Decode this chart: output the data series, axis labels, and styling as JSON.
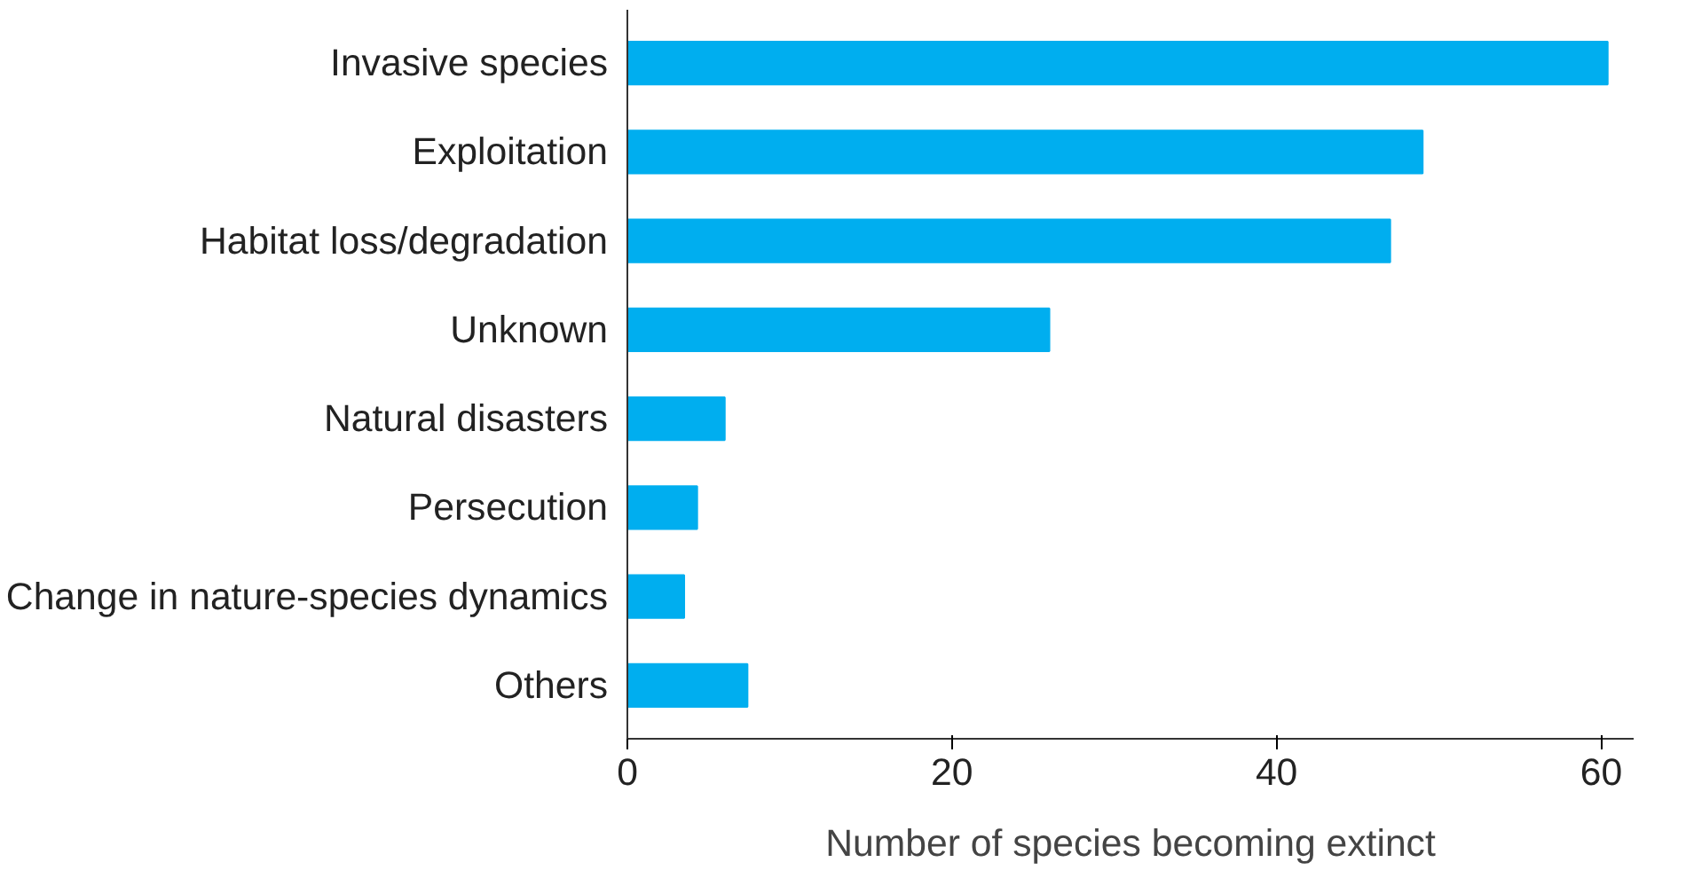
{
  "chart_data": {
    "type": "bar",
    "orientation": "horizontal",
    "xlabel": "Number of species becoming extinct",
    "categories": [
      "Invasive species",
      "Exploitation",
      "Habitat loss/degradation",
      "Unknown",
      "Natural disasters",
      "Persecution",
      "Change in nature-species dynamics",
      "Others"
    ],
    "values": [
      60.4,
      49,
      47,
      26,
      6,
      4.3,
      3.5,
      7.4
    ],
    "color": "#00aeef",
    "xlim": [
      0,
      62
    ],
    "xticks": [
      0,
      20,
      40,
      60
    ],
    "grid": false
  }
}
